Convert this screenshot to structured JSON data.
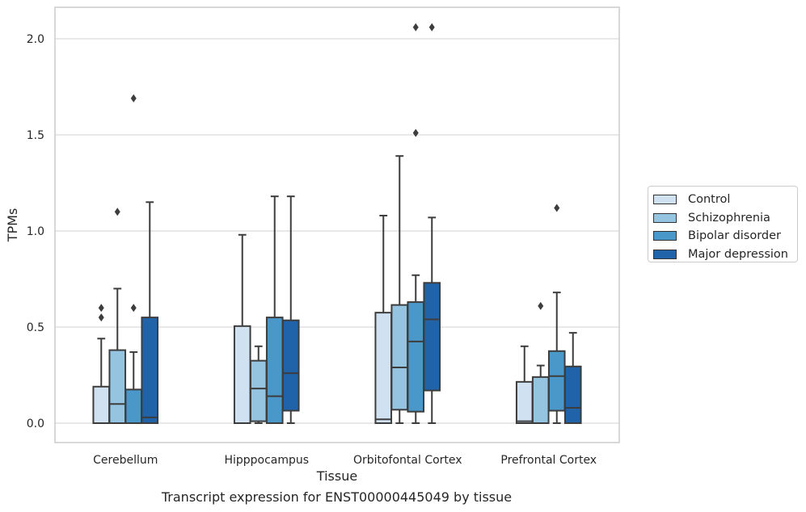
{
  "chart_data": {
    "type": "box",
    "xlabel": "Tissue",
    "ylabel": "TPMs",
    "caption": "Transcript expression for ENST00000445049 by tissue",
    "categories": [
      "Cerebellum",
      "Hipppocampus",
      "Orbitofontal Cortex",
      "Prefrontal Cortex"
    ],
    "ylim": [
      -0.1,
      2.17
    ],
    "yticks": [
      0.0,
      0.5,
      1.0,
      1.5,
      2.0
    ],
    "ytick_labels": [
      "0.0",
      "0.5",
      "1.0",
      "1.5",
      "2.0"
    ],
    "grid": true,
    "legend_position": "right",
    "series": [
      {
        "name": "Control",
        "color": "#d0e1f2",
        "boxes": [
          {
            "min": 0.0,
            "q1": 0.0,
            "median": 0.0,
            "q3": 0.19,
            "max": 0.44,
            "outliers": [
              0.55,
              0.6
            ]
          },
          {
            "min": 0.0,
            "q1": 0.0,
            "median": 0.0,
            "q3": 0.505,
            "max": 0.98,
            "outliers": []
          },
          {
            "min": 0.0,
            "q1": 0.0,
            "median": 0.02,
            "q3": 0.575,
            "max": 1.08,
            "outliers": []
          },
          {
            "min": 0.0,
            "q1": 0.0,
            "median": 0.01,
            "q3": 0.215,
            "max": 0.4,
            "outliers": []
          }
        ]
      },
      {
        "name": "Schizophrenia",
        "color": "#94c4df",
        "boxes": [
          {
            "min": 0.0,
            "q1": 0.0,
            "median": 0.1,
            "q3": 0.38,
            "max": 0.7,
            "outliers": [
              1.1
            ]
          },
          {
            "min": 0.0,
            "q1": 0.01,
            "median": 0.18,
            "q3": 0.325,
            "max": 0.4,
            "outliers": []
          },
          {
            "min": 0.0,
            "q1": 0.07,
            "median": 0.29,
            "q3": 0.615,
            "max": 1.39,
            "outliers": []
          },
          {
            "min": 0.0,
            "q1": 0.0,
            "median": 0.0,
            "q3": 0.24,
            "max": 0.3,
            "outliers": [
              0.61
            ]
          }
        ]
      },
      {
        "name": "Bipolar disorder",
        "color": "#4a98c9",
        "boxes": [
          {
            "min": 0.0,
            "q1": 0.0,
            "median": 0.0,
            "q3": 0.175,
            "max": 0.37,
            "outliers": [
              0.6,
              1.69
            ]
          },
          {
            "min": 0.0,
            "q1": 0.0,
            "median": 0.14,
            "q3": 0.55,
            "max": 1.18,
            "outliers": []
          },
          {
            "min": 0.0,
            "q1": 0.06,
            "median": 0.425,
            "q3": 0.63,
            "max": 0.77,
            "outliers": [
              1.51,
              2.06
            ]
          },
          {
            "min": 0.0,
            "q1": 0.065,
            "median": 0.245,
            "q3": 0.375,
            "max": 0.68,
            "outliers": [
              1.12
            ]
          }
        ]
      },
      {
        "name": "Major depression",
        "color": "#2163a8",
        "boxes": [
          {
            "min": 0.0,
            "q1": 0.0,
            "median": 0.03,
            "q3": 0.55,
            "max": 1.15,
            "outliers": []
          },
          {
            "min": 0.0,
            "q1": 0.065,
            "median": 0.26,
            "q3": 0.535,
            "max": 1.18,
            "outliers": []
          },
          {
            "min": 0.0,
            "q1": 0.17,
            "median": 0.54,
            "q3": 0.73,
            "max": 1.07,
            "outliers": [
              2.06
            ]
          },
          {
            "min": 0.0,
            "q1": 0.0,
            "median": 0.08,
            "q3": 0.295,
            "max": 0.47,
            "outliers": []
          }
        ]
      }
    ]
  }
}
